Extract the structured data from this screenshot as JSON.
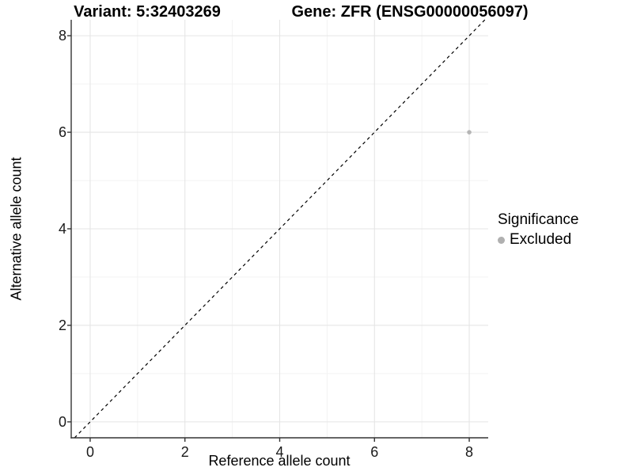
{
  "titles": {
    "variant": "Variant: 5:32403269",
    "gene": "Gene: ZFR (ENSG00000056097)"
  },
  "axes": {
    "x_label": "Reference allele count",
    "y_label": "Alternative allele count"
  },
  "legend": {
    "title": "Significance",
    "items": [
      {
        "label": "Excluded",
        "color": "#b0b0b0"
      }
    ]
  },
  "colors": {
    "background": "#ffffff",
    "panel_background": "#ffffff",
    "grid_major": "#e5e5e5",
    "grid_minor": "#f2f2f2",
    "axis_line": "#333333",
    "tick_mark": "#333333",
    "text": "#000000",
    "point": "#b5b5b5",
    "reference_line": "#000000"
  },
  "chart_data": {
    "type": "scatter",
    "title": "Variant: 5:32403269    Gene: ZFR (ENSG00000056097)",
    "xlabel": "Reference allele count",
    "ylabel": "Alternative allele count",
    "xlim": [
      -0.4,
      8.4
    ],
    "ylim": [
      -0.33,
      8.33
    ],
    "x_ticks": [
      0,
      2,
      4,
      6,
      8
    ],
    "y_ticks": [
      0,
      2,
      4,
      6,
      8
    ],
    "x_minor_ticks": [
      1,
      3,
      5,
      7
    ],
    "y_minor_ticks": [
      1,
      3,
      5,
      7
    ],
    "grid": true,
    "legend_position": "right",
    "series": [
      {
        "name": "Excluded",
        "color": "#b5b5b5",
        "points": [
          {
            "x": 8,
            "y": 6
          }
        ]
      }
    ],
    "reference_line": {
      "slope": 1,
      "intercept": 0,
      "style": "dashed",
      "color": "#000000"
    }
  }
}
